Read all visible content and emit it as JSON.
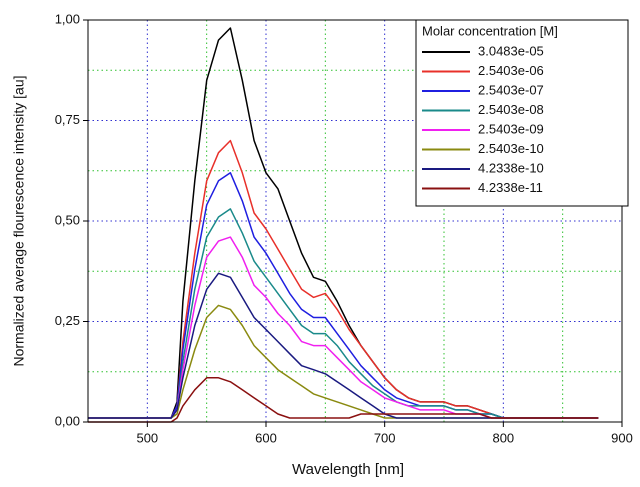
{
  "chart_data": {
    "type": "line",
    "x_label": "Wavelength [nm]",
    "y_label": "Normalized average flourescence intensity [au]",
    "legend_title": "Molar concentration [M]",
    "legend_position": "upper right",
    "grid": true,
    "xlim": [
      450,
      900
    ],
    "ylim": [
      0,
      1
    ],
    "xticks": [
      500,
      600,
      700,
      800,
      900
    ],
    "yticks": [
      {
        "value": 0,
        "label": "0,00"
      },
      {
        "value": 0.25,
        "label": "0,25"
      },
      {
        "value": 0.5,
        "label": "0,50"
      },
      {
        "value": 0.75,
        "label": "0,75"
      },
      {
        "value": 1,
        "label": "1,00"
      }
    ],
    "minor_xticks": [
      550,
      650,
      750,
      850
    ],
    "minor_yticks": [
      0.125,
      0.375,
      0.625,
      0.875
    ],
    "x": [
      450,
      500,
      520,
      525,
      530,
      540,
      550,
      560,
      570,
      580,
      590,
      600,
      610,
      620,
      630,
      640,
      650,
      660,
      670,
      680,
      690,
      700,
      710,
      720,
      730,
      740,
      750,
      760,
      770,
      780,
      790,
      800,
      840,
      880
    ],
    "series": [
      {
        "name": "3.0483e-05",
        "color": "#000000",
        "values": [
          0.01,
          0.01,
          0.01,
          0.05,
          0.3,
          0.6,
          0.85,
          0.95,
          0.98,
          0.85,
          0.7,
          0.62,
          0.58,
          0.5,
          0.42,
          0.36,
          0.35,
          0.3,
          0.24,
          0.19,
          0.15,
          0.11,
          0.08,
          0.06,
          0.05,
          0.05,
          0.05,
          0.04,
          0.04,
          0.03,
          0.02,
          0.01,
          0.01,
          0.01
        ]
      },
      {
        "name": "2.5403e-06",
        "color": "#e8302a",
        "values": [
          0.01,
          0.01,
          0.01,
          0.04,
          0.2,
          0.42,
          0.6,
          0.67,
          0.7,
          0.62,
          0.52,
          0.48,
          0.43,
          0.38,
          0.33,
          0.31,
          0.32,
          0.28,
          0.23,
          0.19,
          0.15,
          0.11,
          0.08,
          0.06,
          0.05,
          0.05,
          0.05,
          0.04,
          0.04,
          0.03,
          0.02,
          0.01,
          0.01,
          0.01
        ]
      },
      {
        "name": "2.5403e-07",
        "color": "#1f1fe0",
        "values": [
          0.01,
          0.01,
          0.01,
          0.04,
          0.18,
          0.38,
          0.54,
          0.6,
          0.62,
          0.55,
          0.46,
          0.42,
          0.37,
          0.32,
          0.28,
          0.26,
          0.26,
          0.22,
          0.18,
          0.14,
          0.11,
          0.08,
          0.06,
          0.05,
          0.04,
          0.04,
          0.04,
          0.03,
          0.03,
          0.02,
          0.02,
          0.01,
          0.01,
          0.01
        ]
      },
      {
        "name": "2.5403e-08",
        "color": "#1a8a8a",
        "values": [
          0.01,
          0.01,
          0.01,
          0.03,
          0.15,
          0.33,
          0.46,
          0.51,
          0.53,
          0.47,
          0.4,
          0.36,
          0.32,
          0.28,
          0.24,
          0.22,
          0.22,
          0.19,
          0.15,
          0.12,
          0.09,
          0.07,
          0.05,
          0.04,
          0.04,
          0.04,
          0.04,
          0.03,
          0.03,
          0.02,
          0.02,
          0.01,
          0.01,
          0.01
        ]
      },
      {
        "name": "2.5403e-09",
        "color": "#f020f0",
        "values": [
          0.01,
          0.01,
          0.01,
          0.03,
          0.13,
          0.29,
          0.41,
          0.45,
          0.46,
          0.41,
          0.34,
          0.31,
          0.27,
          0.24,
          0.2,
          0.19,
          0.19,
          0.16,
          0.13,
          0.1,
          0.08,
          0.06,
          0.05,
          0.04,
          0.03,
          0.03,
          0.03,
          0.02,
          0.02,
          0.02,
          0.01,
          0.01,
          0.01,
          0.01
        ]
      },
      {
        "name": "2.5403e-10",
        "color": "#8a8a10",
        "values": [
          0.01,
          0.01,
          0.01,
          0.02,
          0.08,
          0.18,
          0.26,
          0.29,
          0.28,
          0.24,
          0.19,
          0.16,
          0.13,
          0.11,
          0.09,
          0.07,
          0.06,
          0.05,
          0.04,
          0.03,
          0.02,
          0.01,
          0.01,
          0.01,
          0.01,
          0.01,
          0.01,
          0.01,
          0.01,
          0.01,
          0.01,
          0.01,
          0.01,
          0.01
        ]
      },
      {
        "name": "4.2338e-10",
        "color": "#1a1a80",
        "values": [
          0.01,
          0.01,
          0.01,
          0.03,
          0.11,
          0.24,
          0.33,
          0.37,
          0.36,
          0.31,
          0.26,
          0.23,
          0.2,
          0.17,
          0.14,
          0.13,
          0.12,
          0.1,
          0.08,
          0.06,
          0.04,
          0.02,
          0.01,
          0.01,
          0.01,
          0.01,
          0.01,
          0.01,
          0.01,
          0.01,
          0.01,
          0.01,
          0.01,
          0.01
        ]
      },
      {
        "name": "4.2338e-11",
        "color": "#8a1010",
        "values": [
          0,
          0,
          0,
          0.01,
          0.04,
          0.08,
          0.11,
          0.11,
          0.1,
          0.08,
          0.06,
          0.04,
          0.02,
          0.01,
          0.01,
          0.01,
          0.01,
          0.01,
          0.01,
          0.02,
          0.02,
          0.02,
          0.02,
          0.02,
          0.02,
          0.02,
          0.02,
          0.02,
          0.02,
          0.02,
          0.01,
          0.01,
          0.01,
          0.01
        ]
      }
    ]
  }
}
